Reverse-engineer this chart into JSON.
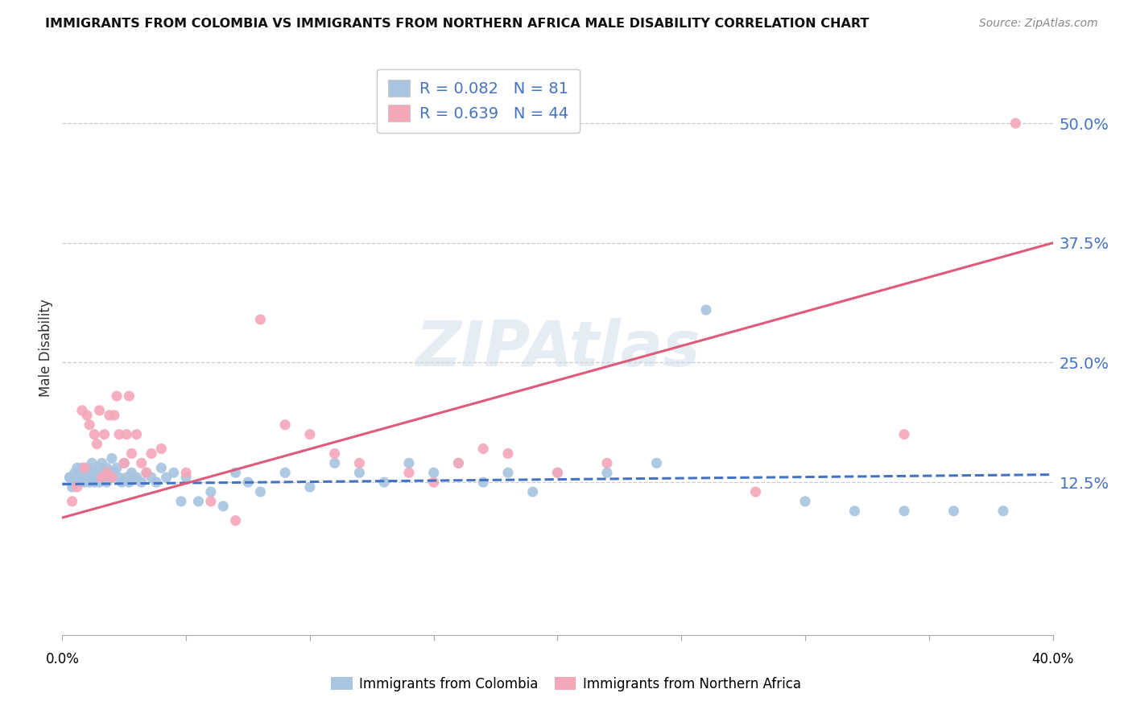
{
  "title": "IMMIGRANTS FROM COLOMBIA VS IMMIGRANTS FROM NORTHERN AFRICA MALE DISABILITY CORRELATION CHART",
  "source": "Source: ZipAtlas.com",
  "ylabel": "Male Disability",
  "xlim": [
    0.0,
    0.4
  ],
  "ylim": [
    -0.035,
    0.565
  ],
  "colombia_R": 0.082,
  "colombia_N": 81,
  "northern_africa_R": 0.639,
  "northern_africa_N": 44,
  "colombia_color": "#a8c4e0",
  "northern_africa_color": "#f4a7b9",
  "colombia_line_color": "#4472c4",
  "northern_africa_line_color": "#e05a7a",
  "watermark": "ZIPAtlas",
  "legend_label_colombia": "Immigrants from Colombia",
  "legend_label_northern_africa": "Immigrants from Northern Africa",
  "ytick_vals": [
    0.0,
    0.125,
    0.25,
    0.375,
    0.5
  ],
  "ytick_labels": [
    "",
    "12.5%",
    "25.0%",
    "37.5%",
    "50.0%"
  ],
  "colombia_trend_x": [
    0.0,
    0.4
  ],
  "colombia_trend_y": [
    0.123,
    0.133
  ],
  "northern_africa_trend_x": [
    0.0,
    0.4
  ],
  "northern_africa_trend_y": [
    0.088,
    0.375
  ],
  "colombia_scatter_x": [
    0.003,
    0.004,
    0.005,
    0.006,
    0.006,
    0.007,
    0.007,
    0.008,
    0.008,
    0.009,
    0.009,
    0.01,
    0.01,
    0.011,
    0.011,
    0.012,
    0.012,
    0.013,
    0.013,
    0.014,
    0.015,
    0.015,
    0.016,
    0.016,
    0.017,
    0.018,
    0.018,
    0.019,
    0.02,
    0.02,
    0.021,
    0.022,
    0.023,
    0.024,
    0.025,
    0.026,
    0.027,
    0.028,
    0.029,
    0.03,
    0.032,
    0.034,
    0.036,
    0.038,
    0.04,
    0.042,
    0.045,
    0.048,
    0.05,
    0.055,
    0.06,
    0.065,
    0.07,
    0.075,
    0.08,
    0.09,
    0.1,
    0.11,
    0.12,
    0.13,
    0.14,
    0.15,
    0.16,
    0.17,
    0.18,
    0.19,
    0.2,
    0.22,
    0.24,
    0.26,
    0.3,
    0.32,
    0.34,
    0.36,
    0.38,
    0.003,
    0.004,
    0.005,
    0.006,
    0.007,
    0.008
  ],
  "colombia_scatter_y": [
    0.13,
    0.125,
    0.135,
    0.13,
    0.14,
    0.125,
    0.135,
    0.13,
    0.14,
    0.125,
    0.135,
    0.13,
    0.14,
    0.125,
    0.135,
    0.13,
    0.145,
    0.125,
    0.135,
    0.13,
    0.14,
    0.125,
    0.135,
    0.145,
    0.13,
    0.14,
    0.125,
    0.135,
    0.13,
    0.15,
    0.135,
    0.14,
    0.13,
    0.125,
    0.145,
    0.13,
    0.125,
    0.135,
    0.13,
    0.13,
    0.125,
    0.135,
    0.13,
    0.125,
    0.14,
    0.13,
    0.135,
    0.105,
    0.13,
    0.105,
    0.115,
    0.1,
    0.135,
    0.125,
    0.115,
    0.135,
    0.12,
    0.145,
    0.135,
    0.125,
    0.145,
    0.135,
    0.145,
    0.125,
    0.135,
    0.115,
    0.135,
    0.135,
    0.145,
    0.305,
    0.105,
    0.095,
    0.095,
    0.095,
    0.095,
    0.13,
    0.12,
    0.125,
    0.13,
    0.125,
    0.13
  ],
  "northern_africa_scatter_x": [
    0.004,
    0.006,
    0.008,
    0.009,
    0.01,
    0.011,
    0.013,
    0.014,
    0.015,
    0.016,
    0.017,
    0.018,
    0.019,
    0.02,
    0.021,
    0.022,
    0.023,
    0.025,
    0.026,
    0.027,
    0.028,
    0.03,
    0.032,
    0.034,
    0.036,
    0.04,
    0.05,
    0.06,
    0.07,
    0.08,
    0.09,
    0.1,
    0.11,
    0.12,
    0.14,
    0.15,
    0.16,
    0.17,
    0.18,
    0.2,
    0.22,
    0.28,
    0.34,
    0.385
  ],
  "northern_africa_scatter_y": [
    0.105,
    0.12,
    0.2,
    0.14,
    0.195,
    0.185,
    0.175,
    0.165,
    0.2,
    0.13,
    0.175,
    0.135,
    0.195,
    0.13,
    0.195,
    0.215,
    0.175,
    0.145,
    0.175,
    0.215,
    0.155,
    0.175,
    0.145,
    0.135,
    0.155,
    0.16,
    0.135,
    0.105,
    0.085,
    0.295,
    0.185,
    0.175,
    0.155,
    0.145,
    0.135,
    0.125,
    0.145,
    0.16,
    0.155,
    0.135,
    0.145,
    0.115,
    0.175,
    0.5
  ]
}
